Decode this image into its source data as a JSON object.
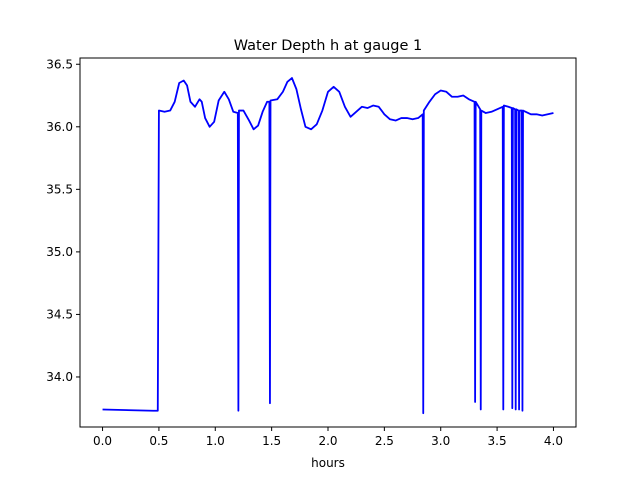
{
  "chart_data": {
    "type": "line",
    "title": "Water Depth h at gauge 1",
    "xlabel": "hours",
    "ylabel": "",
    "xlim": [
      -0.2,
      4.2
    ],
    "ylim": [
      33.6,
      36.55
    ],
    "xticks": [
      0.0,
      0.5,
      1.0,
      1.5,
      2.0,
      2.5,
      3.0,
      3.5,
      4.0
    ],
    "xtick_labels": [
      "0.0",
      "0.5",
      "1.0",
      "1.5",
      "2.0",
      "2.5",
      "3.0",
      "3.5",
      "4.0"
    ],
    "yticks": [
      34.0,
      34.5,
      35.0,
      35.5,
      36.0,
      36.5
    ],
    "ytick_labels": [
      "34.0",
      "34.5",
      "35.0",
      "35.5",
      "36.0",
      "36.5"
    ],
    "grid": false,
    "legend": "none",
    "series": [
      {
        "color": "#0000ff",
        "points": [
          [
            0.0,
            33.74
          ],
          [
            0.45,
            33.73
          ],
          [
            0.49,
            33.73
          ],
          [
            0.5,
            36.13
          ],
          [
            0.55,
            36.12
          ],
          [
            0.6,
            36.13
          ],
          [
            0.64,
            36.2
          ],
          [
            0.68,
            36.35
          ],
          [
            0.72,
            36.37
          ],
          [
            0.75,
            36.33
          ],
          [
            0.78,
            36.2
          ],
          [
            0.82,
            36.16
          ],
          [
            0.86,
            36.22
          ],
          [
            0.88,
            36.2
          ],
          [
            0.91,
            36.07
          ],
          [
            0.95,
            36.0
          ],
          [
            0.99,
            36.04
          ],
          [
            1.03,
            36.21
          ],
          [
            1.08,
            36.28
          ],
          [
            1.12,
            36.22
          ],
          [
            1.16,
            36.12
          ],
          [
            1.2,
            36.11
          ],
          [
            1.205,
            33.73
          ],
          [
            1.21,
            36.13
          ],
          [
            1.25,
            36.13
          ],
          [
            1.3,
            36.05
          ],
          [
            1.34,
            35.98
          ],
          [
            1.38,
            36.01
          ],
          [
            1.42,
            36.12
          ],
          [
            1.46,
            36.2
          ],
          [
            1.48,
            36.2
          ],
          [
            1.485,
            33.79
          ],
          [
            1.49,
            36.21
          ],
          [
            1.55,
            36.22
          ],
          [
            1.6,
            36.28
          ],
          [
            1.64,
            36.36
          ],
          [
            1.68,
            36.39
          ],
          [
            1.72,
            36.3
          ],
          [
            1.76,
            36.14
          ],
          [
            1.8,
            36.0
          ],
          [
            1.85,
            35.98
          ],
          [
            1.9,
            36.02
          ],
          [
            1.95,
            36.13
          ],
          [
            2.0,
            36.28
          ],
          [
            2.05,
            36.32
          ],
          [
            2.1,
            36.28
          ],
          [
            2.15,
            36.16
          ],
          [
            2.2,
            36.08
          ],
          [
            2.25,
            36.12
          ],
          [
            2.3,
            36.16
          ],
          [
            2.35,
            36.15
          ],
          [
            2.4,
            36.17
          ],
          [
            2.45,
            36.16
          ],
          [
            2.5,
            36.1
          ],
          [
            2.55,
            36.06
          ],
          [
            2.6,
            36.05
          ],
          [
            2.65,
            36.07
          ],
          [
            2.7,
            36.07
          ],
          [
            2.75,
            36.06
          ],
          [
            2.8,
            36.07
          ],
          [
            2.84,
            36.1
          ],
          [
            2.845,
            33.71
          ],
          [
            2.85,
            36.13
          ],
          [
            2.9,
            36.2
          ],
          [
            2.95,
            36.26
          ],
          [
            3.0,
            36.29
          ],
          [
            3.05,
            36.28
          ],
          [
            3.1,
            36.24
          ],
          [
            3.15,
            36.24
          ],
          [
            3.2,
            36.25
          ],
          [
            3.25,
            36.22
          ],
          [
            3.3,
            36.2
          ],
          [
            3.305,
            33.8
          ],
          [
            3.31,
            36.2
          ],
          [
            3.35,
            36.14
          ],
          [
            3.355,
            33.74
          ],
          [
            3.36,
            36.13
          ],
          [
            3.4,
            36.11
          ],
          [
            3.45,
            36.12
          ],
          [
            3.5,
            36.14
          ],
          [
            3.55,
            36.16
          ],
          [
            3.555,
            33.74
          ],
          [
            3.56,
            36.17
          ],
          [
            3.6,
            36.16
          ],
          [
            3.63,
            36.15
          ],
          [
            3.635,
            33.75
          ],
          [
            3.64,
            36.15
          ],
          [
            3.66,
            36.14
          ],
          [
            3.665,
            33.74
          ],
          [
            3.67,
            36.14
          ],
          [
            3.69,
            36.13
          ],
          [
            3.695,
            33.74
          ],
          [
            3.7,
            36.13
          ],
          [
            3.72,
            36.13
          ],
          [
            3.725,
            33.73
          ],
          [
            3.73,
            36.13
          ],
          [
            3.8,
            36.1
          ],
          [
            3.85,
            36.1
          ],
          [
            3.9,
            36.09
          ],
          [
            3.95,
            36.1
          ],
          [
            4.0,
            36.11
          ]
        ]
      }
    ]
  }
}
